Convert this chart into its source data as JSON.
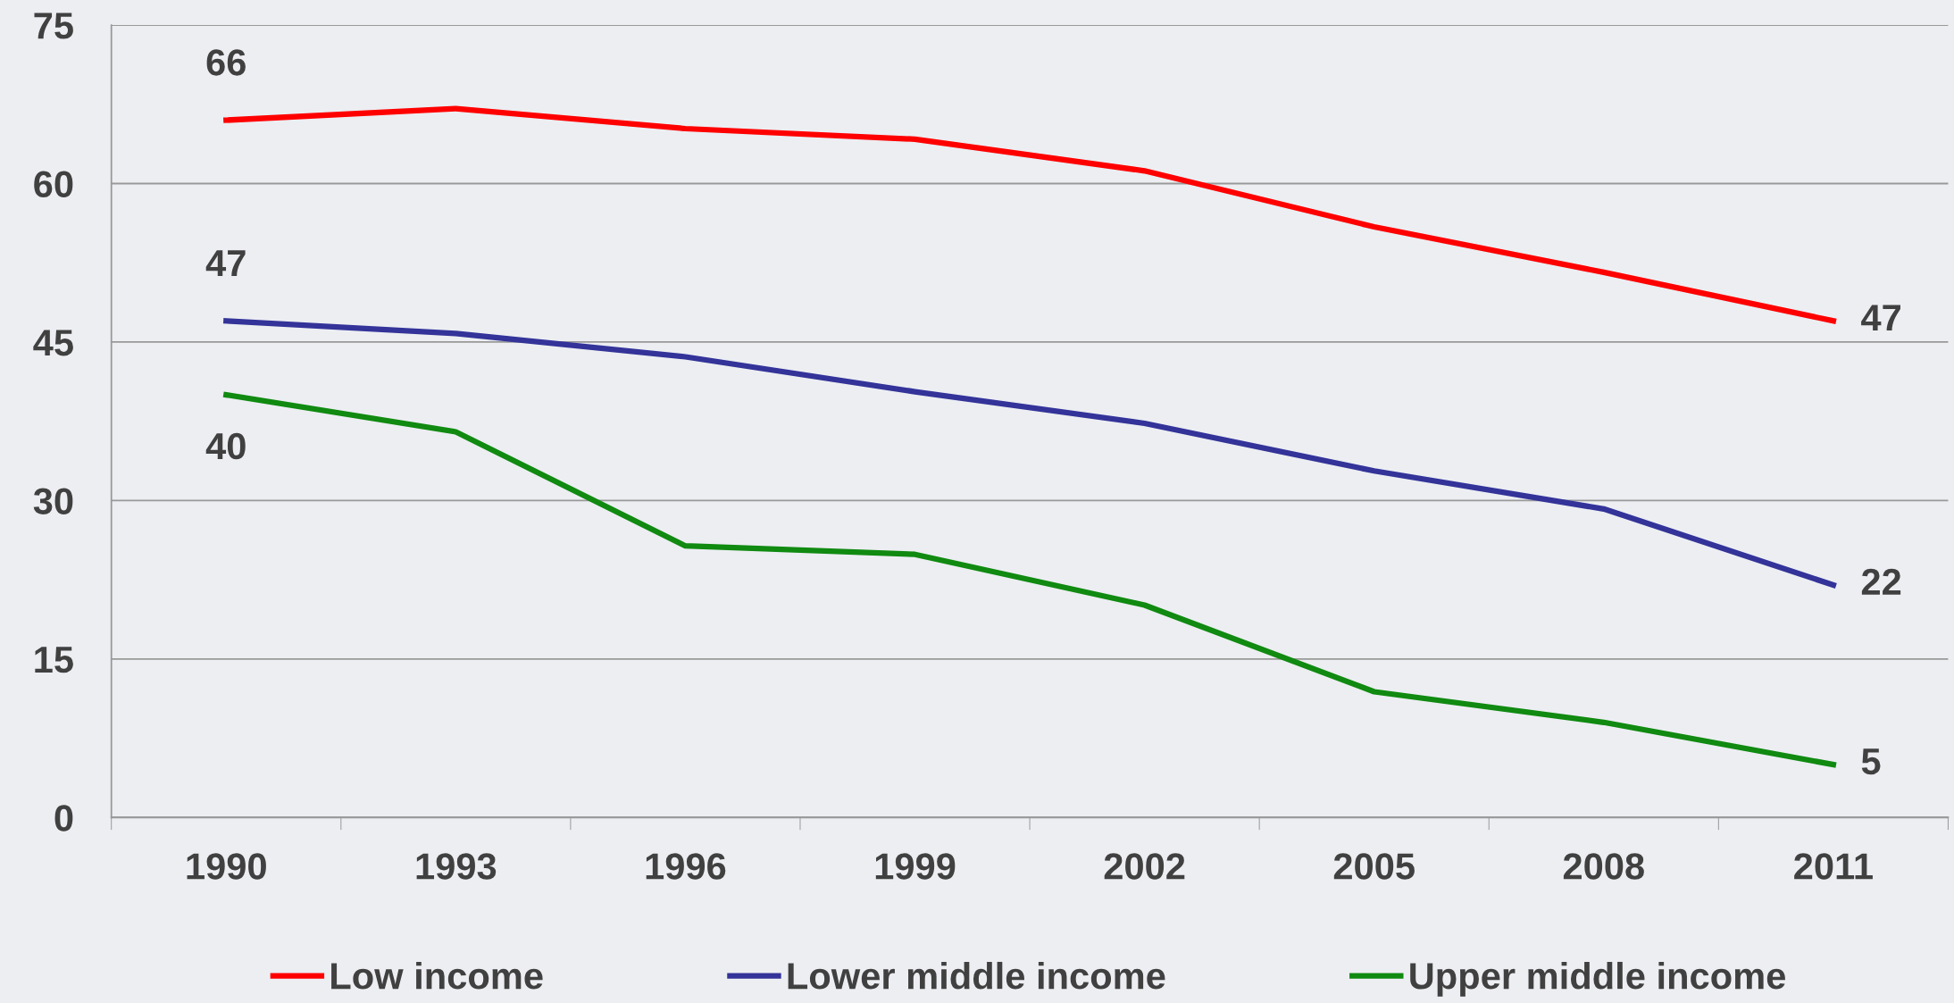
{
  "chart_data": {
    "type": "line",
    "categories": [
      "1990",
      "1993",
      "1996",
      "1999",
      "2002",
      "2005",
      "2008",
      "2011"
    ],
    "series": [
      {
        "name": "Low income",
        "color": "#ff0000",
        "values": [
          66,
          67.1,
          65.2,
          64.2,
          61.2,
          55.9,
          51.6,
          47
        ],
        "value_labels": [
          "66",
          null,
          null,
          null,
          null,
          null,
          null,
          "47"
        ]
      },
      {
        "name": "Lower middle income",
        "color": "#333399",
        "values": [
          47,
          45.8,
          43.6,
          40.3,
          37.3,
          32.8,
          29.2,
          22
        ],
        "value_labels": [
          "47",
          null,
          null,
          null,
          null,
          null,
          null,
          "22"
        ]
      },
      {
        "name": "Upper middle income",
        "color": "#108a10",
        "values": [
          40,
          36.5,
          25.7,
          24.9,
          20.1,
          11.9,
          9.0,
          5
        ],
        "value_labels": [
          "40",
          null,
          null,
          null,
          null,
          null,
          null,
          "5"
        ]
      }
    ],
    "ylim": [
      0,
      75
    ],
    "yticks": [
      0,
      15,
      30,
      45,
      60,
      75
    ],
    "grid": "y",
    "legend": "bottom",
    "marker": "none",
    "line_style": "solid"
  }
}
